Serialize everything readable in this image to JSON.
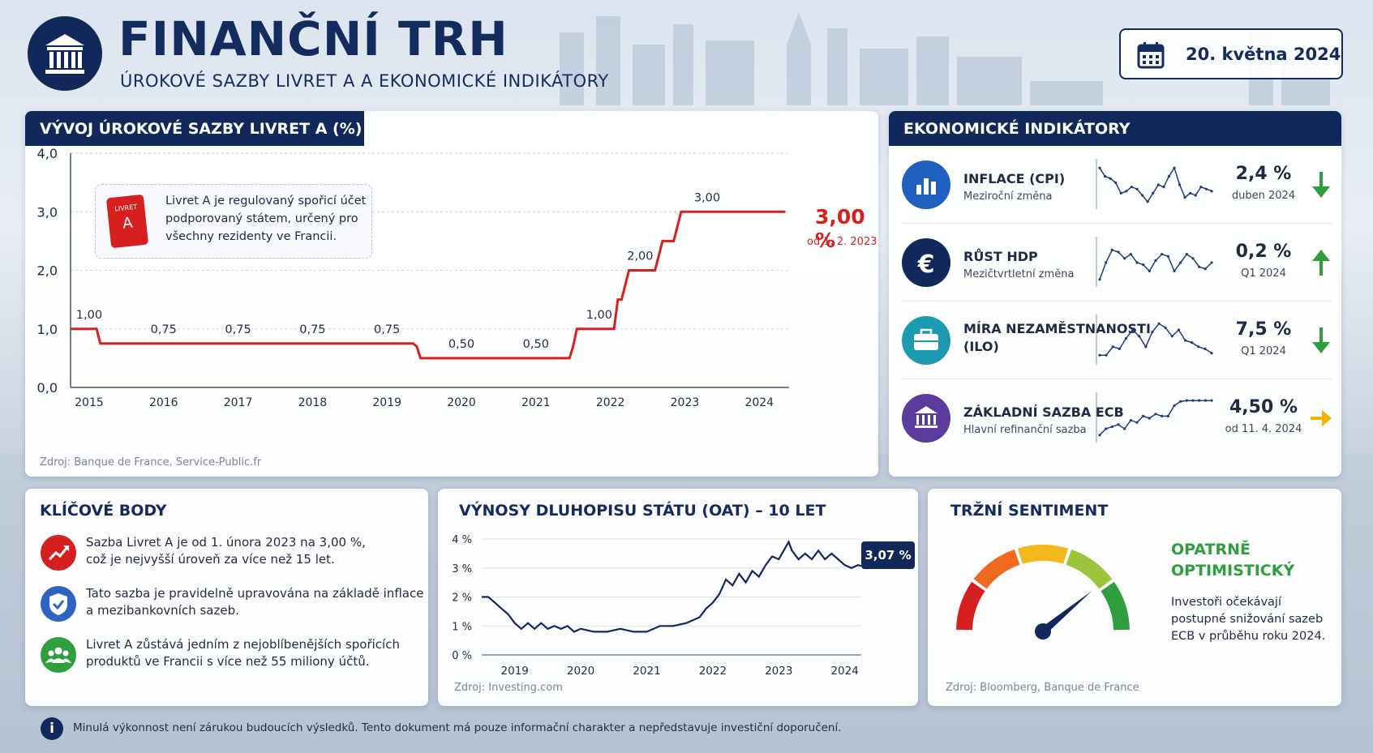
{
  "header": {
    "title": "FINANČNÍ TRH",
    "subtitle": "ÚROKOVÉ SAZBY LIVRET A A EKONOMICKÉ INDIKÁTORY",
    "date": "20. května 2024"
  },
  "livret_chart": {
    "title": "VÝVOJ ÚROKOVÉ SAZBY LIVRET A (%)",
    "callout_text_lines": [
      "Livret A je regulovaný spořicí účet",
      "podporovaný státem, určený pro",
      "všechny rezidenty ve Francii."
    ],
    "badge_top": "LIVRET",
    "badge_bottom": "A",
    "current_value": "3,00 %",
    "current_since": "od 1. 2. 2023",
    "source": "Zdroj: Banque de France, Service-Public.fr"
  },
  "indicators": {
    "title": "EKONOMICKÉ INDIKÁTORY",
    "items": [
      {
        "name": "INFLACE (CPI)",
        "name2": "",
        "sub": "Meziroční změna",
        "value": "2,4 %",
        "period": "duben 2024",
        "trend": "down",
        "icon": "bar-chart-icon",
        "color": "#1f5fbf"
      },
      {
        "name": "RŮST HDP",
        "name2": "",
        "sub": "Mezičtvrtletní změna",
        "value": "0,2 %",
        "period": "Q1 2024",
        "trend": "up",
        "icon": "euro-icon",
        "color": "#12285a"
      },
      {
        "name": "MÍRA NEZAMĚSTNANOSTI",
        "name2": "(ILO)",
        "sub": "",
        "value": "7,5 %",
        "period": "Q1 2024",
        "trend": "down",
        "icon": "briefcase-icon",
        "color": "#1c9bb0"
      },
      {
        "name": "ZÁKLADNÍ SAZBA ECB",
        "name2": "",
        "sub": "Hlavní refinanční sazba",
        "value": "4,50 %",
        "period": "od 11. 4. 2024",
        "trend": "flat",
        "icon": "bank-icon",
        "color": "#5b3b9c"
      }
    ]
  },
  "key_points": {
    "title": "KLÍČOVÉ BODY",
    "items": [
      {
        "line1": "Sazba Livret A je od 1. února 2023 na 3,00 %,",
        "line2": "což je nejvyšší úroveň za více než 15 let.",
        "icon": "trend-up-icon",
        "color": "#d62020"
      },
      {
        "line1": "Tato sazba je pravidelně upravována na základě inflace",
        "line2": "a mezibankovních sazeb.",
        "icon": "shield-check-icon",
        "color": "#2e63c0"
      },
      {
        "line1": "Livret A zůstává jedním z nejoblíbenějších spořicích",
        "line2": "produktů ve Francii s více než 55 miliony účtů.",
        "icon": "people-icon",
        "color": "#2f9e3f"
      }
    ]
  },
  "oat_chart": {
    "title": "VÝNOSY DLUHOPISU STÁTU (OAT) – 10 LET",
    "last_label": "3,07 %",
    "source": "Zdroj: Investing.com"
  },
  "sentiment": {
    "title": "TRŽNÍ SENTIMENT",
    "label_line1": "OPATRNĚ",
    "label_line2": "OPTIMISTICKÝ",
    "desc_lines": [
      "Investoři očekávají",
      "postupné snižování sazeb",
      "ECB v průběhu roku 2024."
    ],
    "level": 0.78,
    "source": "Zdroj: Bloomberg, Banque de France"
  },
  "footer": {
    "text": "Minulá výkonnost není zárukou budoucích výsledků. Tento dokument má pouze informační charakter a nepředstavuje investiční doporučení."
  },
  "colors": {
    "navy": "#12285a",
    "red": "#d62020",
    "green": "#2f9e3f",
    "amber": "#f0b400"
  },
  "chart_data": [
    {
      "type": "line",
      "title": "VÝVOJ ÚROKOVÉ SAZBY LIVRET A (%)",
      "x_ticks": [
        "2015",
        "2016",
        "2017",
        "2018",
        "2019",
        "2020",
        "2021",
        "2022",
        "2023",
        "2024"
      ],
      "y_ticks": [
        "0,0",
        "1,0",
        "2,0",
        "3,0",
        "4,0"
      ],
      "ylim": [
        0,
        4
      ],
      "xlim": [
        2014.75,
        2024.4
      ],
      "grid": true,
      "step_points": [
        [
          2014.75,
          1.0
        ],
        [
          2015.1,
          1.0
        ],
        [
          2015.15,
          0.75
        ],
        [
          2015.8,
          0.75
        ],
        [
          2015.85,
          0.75
        ],
        [
          2019.35,
          0.75
        ],
        [
          2019.4,
          0.7
        ],
        [
          2019.45,
          0.5
        ],
        [
          2021.45,
          0.5
        ],
        [
          2021.5,
          0.7
        ],
        [
          2021.55,
          1.0
        ],
        [
          2021.9,
          1.0
        ],
        [
          2022.05,
          1.0
        ],
        [
          2022.1,
          1.5
        ],
        [
          2022.15,
          1.5
        ],
        [
          2022.25,
          2.0
        ],
        [
          2022.6,
          2.0
        ],
        [
          2022.7,
          2.5
        ],
        [
          2022.85,
          2.5
        ],
        [
          2022.95,
          3.0
        ],
        [
          2024.35,
          3.0
        ]
      ],
      "data_labels": [
        {
          "x": 2015.0,
          "y": 1.0,
          "text": "1,00"
        },
        {
          "x": 2016.0,
          "y": 0.75,
          "text": "0,75"
        },
        {
          "x": 2017.0,
          "y": 0.75,
          "text": "0,75"
        },
        {
          "x": 2018.0,
          "y": 0.75,
          "text": "0,75"
        },
        {
          "x": 2019.0,
          "y": 0.75,
          "text": "0,75"
        },
        {
          "x": 2020.0,
          "y": 0.5,
          "text": "0,50"
        },
        {
          "x": 2021.0,
          "y": 0.5,
          "text": "0,50"
        },
        {
          "x": 2021.85,
          "y": 1.0,
          "text": "1,00"
        },
        {
          "x": 2022.4,
          "y": 2.0,
          "text": "2,00"
        },
        {
          "x": 2023.3,
          "y": 3.0,
          "text": "3,00"
        }
      ]
    },
    {
      "type": "line",
      "title": "VÝNOSY DLUHOPISU STÁTU (OAT) – 10 LET",
      "x_ticks": [
        "2019",
        "2020",
        "2021",
        "2022",
        "2023",
        "2024"
      ],
      "y_ticks": [
        "0 %",
        "1 %",
        "2 %",
        "3 %",
        "4 %"
      ],
      "ylim": [
        0,
        4
      ],
      "xlim": [
        2018.5,
        2024.25
      ],
      "values": [
        [
          2018.5,
          2.0
        ],
        [
          2018.6,
          2.0
        ],
        [
          2018.7,
          1.8
        ],
        [
          2018.8,
          1.6
        ],
        [
          2018.9,
          1.4
        ],
        [
          2019.0,
          1.1
        ],
        [
          2019.1,
          0.9
        ],
        [
          2019.2,
          1.1
        ],
        [
          2019.3,
          0.9
        ],
        [
          2019.4,
          1.1
        ],
        [
          2019.5,
          0.9
        ],
        [
          2019.6,
          1.0
        ],
        [
          2019.7,
          0.9
        ],
        [
          2019.8,
          1.0
        ],
        [
          2019.9,
          0.8
        ],
        [
          2020.0,
          0.9
        ],
        [
          2020.2,
          0.8
        ],
        [
          2020.4,
          0.8
        ],
        [
          2020.6,
          0.9
        ],
        [
          2020.8,
          0.8
        ],
        [
          2021.0,
          0.8
        ],
        [
          2021.2,
          1.0
        ],
        [
          2021.4,
          1.0
        ],
        [
          2021.6,
          1.1
        ],
        [
          2021.8,
          1.3
        ],
        [
          2021.9,
          1.6
        ],
        [
          2022.0,
          1.8
        ],
        [
          2022.1,
          2.1
        ],
        [
          2022.2,
          2.6
        ],
        [
          2022.3,
          2.4
        ],
        [
          2022.4,
          2.8
        ],
        [
          2022.5,
          2.5
        ],
        [
          2022.6,
          2.9
        ],
        [
          2022.7,
          2.7
        ],
        [
          2022.8,
          3.1
        ],
        [
          2022.9,
          3.4
        ],
        [
          2023.0,
          3.3
        ],
        [
          2023.1,
          3.7
        ],
        [
          2023.15,
          3.9
        ],
        [
          2023.2,
          3.6
        ],
        [
          2023.3,
          3.3
        ],
        [
          2023.4,
          3.5
        ],
        [
          2023.5,
          3.3
        ],
        [
          2023.6,
          3.6
        ],
        [
          2023.7,
          3.3
        ],
        [
          2023.8,
          3.5
        ],
        [
          2023.9,
          3.3
        ],
        [
          2024.0,
          3.1
        ],
        [
          2024.1,
          3.0
        ],
        [
          2024.2,
          3.1
        ],
        [
          2024.25,
          3.07
        ]
      ],
      "last_value": 3.07
    },
    {
      "type": "line",
      "title": "INFLACE (CPI)",
      "values": [
        0.9,
        0.7,
        0.65,
        0.55,
        0.3,
        0.35,
        0.45,
        0.4,
        0.25,
        0.1,
        0.3,
        0.5,
        0.45,
        0.7,
        0.9,
        0.5,
        0.2,
        0.3,
        0.25,
        0.45,
        0.4,
        0.35
      ]
    },
    {
      "type": "line",
      "title": "RŮST HDP",
      "values": [
        0.1,
        0.5,
        0.8,
        0.75,
        0.6,
        0.7,
        0.5,
        0.45,
        0.3,
        0.55,
        0.7,
        0.65,
        0.3,
        0.5,
        0.7,
        0.6,
        0.4,
        0.35,
        0.5
      ]
    },
    {
      "type": "line",
      "title": "MÍRA NEZAMĚSTNANOSTI",
      "values": [
        0.15,
        0.15,
        0.35,
        0.3,
        0.55,
        0.75,
        0.6,
        0.35,
        0.7,
        0.9,
        0.8,
        0.6,
        0.75,
        0.5,
        0.45,
        0.35,
        0.3,
        0.2
      ]
    },
    {
      "type": "line",
      "title": "ZÁKLADNÍ SAZBA ECB",
      "values": [
        0.1,
        0.25,
        0.3,
        0.35,
        0.25,
        0.45,
        0.4,
        0.55,
        0.5,
        0.6,
        0.55,
        0.55,
        0.8,
        0.9,
        0.92,
        0.92,
        0.92,
        0.92,
        0.92
      ]
    }
  ]
}
